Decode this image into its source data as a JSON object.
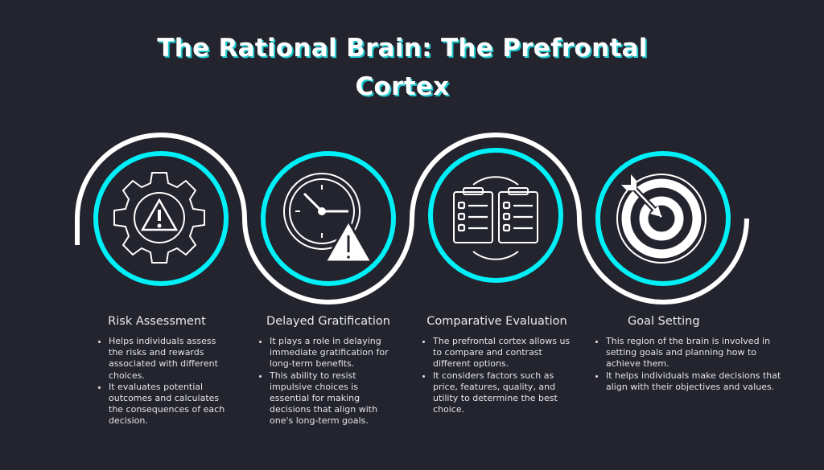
{
  "title": {
    "line1": "The Rational Brain: The Prefrontal",
    "line2": "Cortex"
  },
  "colors": {
    "background": "#23242e",
    "accent": "#00f0f8",
    "wave": "#ffffff",
    "title_shadow": "#1fc9cf"
  },
  "steps": [
    {
      "icon": "gear-warning-icon",
      "heading": "Risk Assessment",
      "bullets": [
        "Helps individuals assess the risks and rewards associated with different choices.",
        "It evaluates potential outcomes and calculates the consequences of each decision."
      ]
    },
    {
      "icon": "clock-warning-icon",
      "heading": "Delayed Gratification",
      "bullets": [
        "It plays a role in delaying immediate gratification for long-term benefits.",
        "This ability to resist impulsive choices is essential for making decisions that align with one's long-term goals."
      ]
    },
    {
      "icon": "clipboards-compare-icon",
      "heading": "Comparative Evaluation",
      "bullets": [
        "The prefrontal cortex allows us to compare and contrast different options.",
        "It considers factors such as price, features, quality, and utility to determine the best choice."
      ]
    },
    {
      "icon": "target-arrow-icon",
      "heading": "Goal Setting",
      "bullets": [
        "This region of the brain is involved in setting goals and planning how to achieve them.",
        "It helps individuals make decisions that align with their objectives and values."
      ]
    }
  ]
}
